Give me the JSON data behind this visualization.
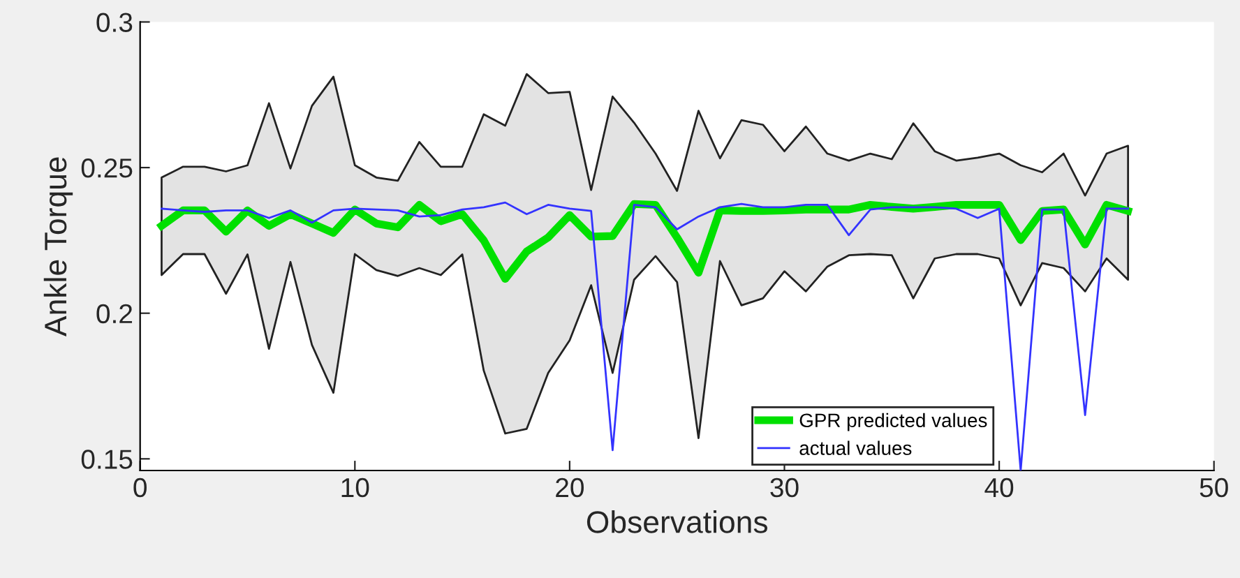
{
  "chart_data": {
    "type": "line",
    "xlabel": "Observations",
    "ylabel": "Ankle Torque",
    "x": [
      1,
      2,
      3,
      4,
      5,
      6,
      7,
      8,
      9,
      10,
      11,
      12,
      13,
      14,
      15,
      16,
      17,
      18,
      19,
      20,
      21,
      22,
      23,
      24,
      25,
      26,
      27,
      28,
      29,
      30,
      31,
      32,
      33,
      34,
      35,
      36,
      37,
      38,
      39,
      40,
      41,
      42,
      43,
      44,
      45,
      46
    ],
    "series": [
      {
        "name": "GPR predicted values",
        "color": "#00e000",
        "values": [
          0.23,
          0.2353,
          0.2353,
          0.228,
          0.2353,
          0.23,
          0.234,
          0.2308,
          0.2276,
          0.2356,
          0.2308,
          0.2295,
          0.2372,
          0.2316,
          0.234,
          0.225,
          0.2118,
          0.2212,
          0.226,
          0.2337,
          0.2263,
          0.2265,
          0.2375,
          0.2372,
          0.226,
          0.2139,
          0.2353,
          0.2351,
          0.2351,
          0.2353,
          0.2356,
          0.2356,
          0.2356,
          0.2372,
          0.2365,
          0.2359,
          0.2365,
          0.2372,
          0.2372,
          0.2372,
          0.2251,
          0.2351,
          0.2356,
          0.2236,
          0.2372,
          0.2351
        ],
        "lower": [
          0.2131,
          0.2203,
          0.2203,
          0.2067,
          0.2202,
          0.1878,
          0.2176,
          0.1891,
          0.1727,
          0.2203,
          0.2148,
          0.2128,
          0.2155,
          0.2131,
          0.2202,
          0.1803,
          0.1587,
          0.1603,
          0.1795,
          0.1907,
          0.2096,
          0.1795,
          0.2115,
          0.2196,
          0.2107,
          0.1571,
          0.2179,
          0.2027,
          0.2051,
          0.2144,
          0.2075,
          0.216,
          0.2199,
          0.2203,
          0.2199,
          0.2051,
          0.2188,
          0.2203,
          0.2203,
          0.2188,
          0.2027,
          0.2172,
          0.2155,
          0.2075,
          0.2188,
          0.2115
        ],
        "upper": [
          0.2466,
          0.2503,
          0.2503,
          0.2487,
          0.2508,
          0.2721,
          0.2497,
          0.2712,
          0.2812,
          0.2508,
          0.2466,
          0.2455,
          0.2588,
          0.2503,
          0.2503,
          0.2683,
          0.2644,
          0.2821,
          0.2756,
          0.276,
          0.2423,
          0.2744,
          0.2654,
          0.2548,
          0.242,
          0.2695,
          0.2532,
          0.2663,
          0.2647,
          0.2556,
          0.2641,
          0.2548,
          0.2524,
          0.2548,
          0.2529,
          0.2652,
          0.2556,
          0.2524,
          0.2534,
          0.2548,
          0.2508,
          0.2484,
          0.2548,
          0.2404,
          0.2548,
          0.2575
        ]
      },
      {
        "name": "actual values",
        "color": "#3333ff",
        "values": [
          0.2359,
          0.2353,
          0.2348,
          0.2353,
          0.2353,
          0.2327,
          0.2353,
          0.2311,
          0.2353,
          0.2359,
          0.2356,
          0.2353,
          0.2332,
          0.2337,
          0.2356,
          0.2364,
          0.238,
          0.234,
          0.2372,
          0.2359,
          0.2351,
          0.153,
          0.2372,
          0.2364,
          0.2288,
          0.2332,
          0.2364,
          0.2375,
          0.2364,
          0.2364,
          0.2372,
          0.2372,
          0.2268,
          0.2356,
          0.2364,
          0.2364,
          0.2364,
          0.2359,
          0.2327,
          0.2359,
          0.146,
          0.2356,
          0.2356,
          0.165,
          0.2359,
          0.2359
        ]
      }
    ],
    "xlim": [
      0,
      50
    ],
    "xticks": [
      0,
      10,
      20,
      30,
      40,
      50
    ],
    "ylim": [
      0.146,
      0.3
    ],
    "yticks": [
      0.15,
      0.2,
      0.25,
      0.3
    ],
    "grid": false,
    "legend": "bottom right",
    "marker": "none",
    "line_style": "solid"
  }
}
